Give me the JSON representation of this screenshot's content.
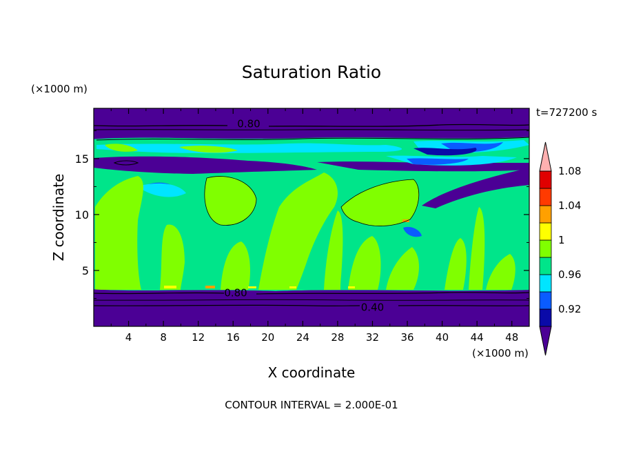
{
  "chart_data": {
    "type": "heatmap",
    "title": "Saturation Ratio",
    "xlabel": "X coordinate",
    "ylabel": "Z coordinate",
    "x_unit": "(×1000 m)",
    "y_unit": "(×1000 m)",
    "time_label": "t=727200 s",
    "footer": "CONTOUR INTERVAL = 2.000E-01",
    "xlim": [
      0,
      50
    ],
    "ylim": [
      0,
      19.5
    ],
    "x_ticks": [
      4,
      8,
      12,
      16,
      20,
      24,
      28,
      32,
      36,
      40,
      44,
      48
    ],
    "y_ticks": [
      5,
      10,
      15
    ],
    "contour_labels": [
      {
        "text": "0.80",
        "x": 17.8,
        "y": 18.1
      },
      {
        "text": "0.80",
        "x": 16.3,
        "y": 3.0
      },
      {
        "text": "0.40",
        "x": 32.0,
        "y": 1.7
      }
    ],
    "colorbar": {
      "levels": [
        "1.08",
        "1.04",
        "1",
        "0.96",
        "0.92"
      ],
      "colors": [
        "#4b0095",
        "#0a0aa8",
        "#0a5cff",
        "#00e5ff",
        "#00e58a",
        "#80ff00",
        "#ffff00",
        "#ffa000",
        "#ff3a00",
        "#e00000",
        "#ffb0b0"
      ],
      "extend": "both"
    }
  }
}
